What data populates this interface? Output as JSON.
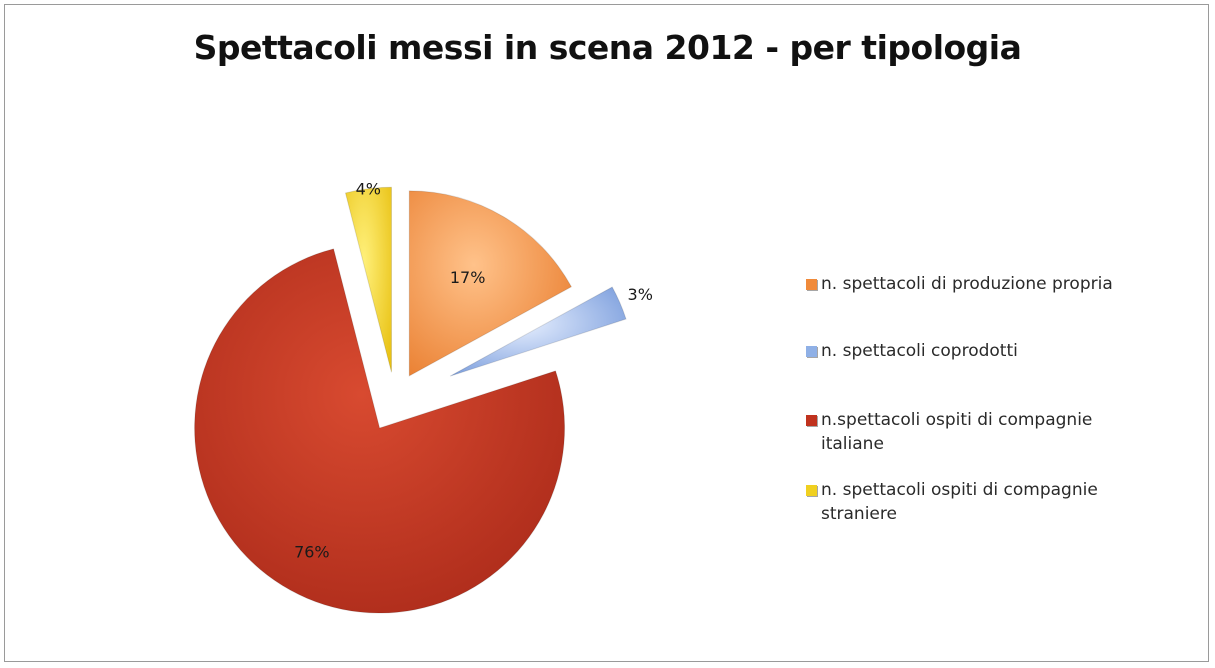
{
  "chart_data": {
    "type": "pie",
    "title": "Spettacoli messi in scena 2012 - per tipologia",
    "exploded": true,
    "categories": [
      "n. spettacoli di produzione propria",
      "n. spettacoli coprodotti",
      "n.spettacoli ospiti di compagnie italiane",
      "n. spettacoli ospiti di compagnie straniere"
    ],
    "values": [
      17,
      3,
      76,
      4
    ],
    "labels": [
      "17%",
      "3%",
      "76%",
      "4%"
    ],
    "colors": [
      "#f08a3a",
      "#8fb0e6",
      "#c0321e",
      "#f0d020"
    ],
    "legend_position": "right"
  }
}
